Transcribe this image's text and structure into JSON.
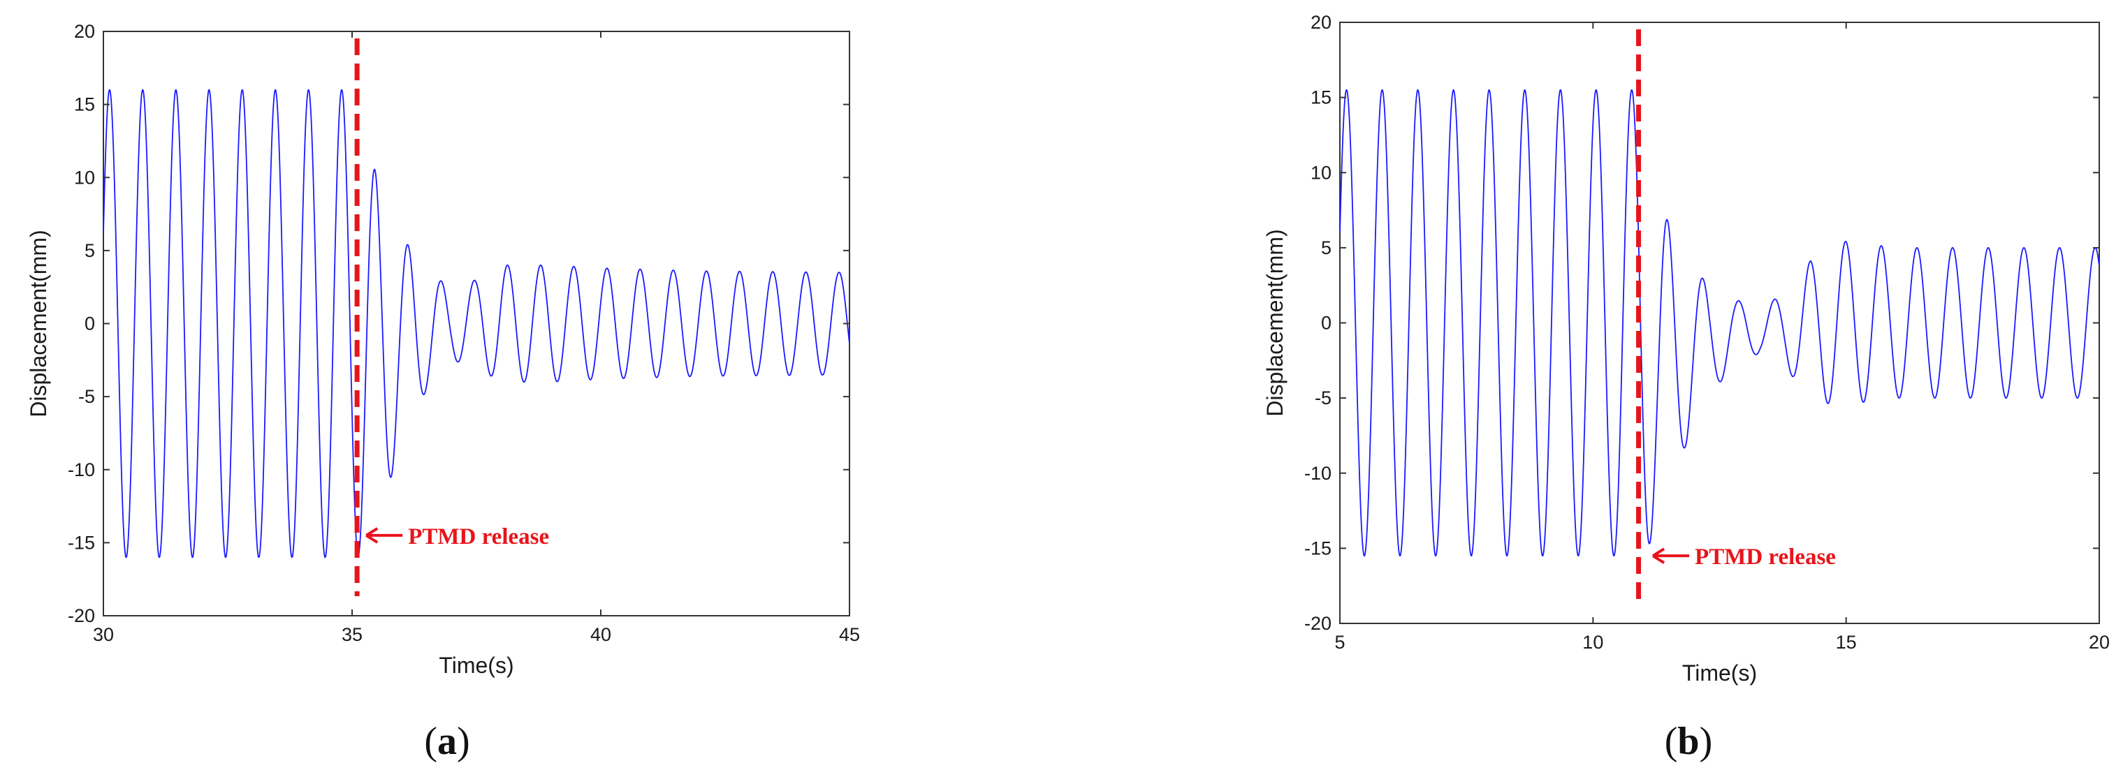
{
  "chart_data": [
    {
      "type": "line",
      "caption": "a",
      "xlabel": "Time(s)",
      "ylabel": "Displacement(mm)",
      "xlim": [
        30,
        45
      ],
      "ylim": [
        -20,
        20
      ],
      "xticks": [
        30,
        35,
        40,
        45
      ],
      "yticks": [
        -20,
        -15,
        -10,
        -5,
        0,
        5,
        10,
        15,
        20
      ],
      "grid": false,
      "line_color": "#1a1aff",
      "release_line": {
        "x": 35.1,
        "color": "#e8141b",
        "style": "dashed"
      },
      "annotation": {
        "text": "PTMD release",
        "x": 35.2,
        "y": -14.5
      },
      "series": [
        {
          "t_start": 30,
          "t_end": 45,
          "frequency_hz": 1.5,
          "envelope": [
            [
              30,
              16
            ],
            [
              35.1,
              16
            ],
            [
              35.5,
              12
            ],
            [
              36,
              7
            ],
            [
              36.5,
              4
            ],
            [
              37,
              2.5
            ],
            [
              37.5,
              3
            ],
            [
              38,
              4
            ],
            [
              39,
              4
            ],
            [
              40,
              3.8
            ],
            [
              42,
              3.6
            ],
            [
              45,
              3.5
            ]
          ],
          "offset": [
            [
              30,
              0
            ],
            [
              35.1,
              0
            ],
            [
              35.4,
              -2
            ],
            [
              36,
              -1
            ],
            [
              37,
              0
            ],
            [
              45,
              0
            ]
          ]
        }
      ]
    },
    {
      "type": "line",
      "caption": "b",
      "xlabel": "Time(s)",
      "ylabel": "Displacement(mm)",
      "xlim": [
        5,
        20
      ],
      "ylim": [
        -20,
        20
      ],
      "xticks": [
        5,
        10,
        15,
        20
      ],
      "yticks": [
        -20,
        -15,
        -10,
        -5,
        0,
        5,
        10,
        15,
        20
      ],
      "grid": false,
      "line_color": "#1a1aff",
      "release_line": {
        "x": 10.9,
        "color": "#e8141b",
        "style": "dashed"
      },
      "annotation": {
        "text": "PTMD release",
        "x": 11.1,
        "y": -15.5
      },
      "series": [
        {
          "t_start": 5,
          "t_end": 20,
          "frequency_hz": 1.42,
          "envelope": [
            [
              5,
              15.5
            ],
            [
              10.9,
              15.5
            ],
            [
              11.3,
              11
            ],
            [
              11.8,
              6.5
            ],
            [
              12.3,
              3.5
            ],
            [
              12.8,
              2.2
            ],
            [
              13.3,
              1.5
            ],
            [
              13.8,
              2.5
            ],
            [
              14.3,
              4.5
            ],
            [
              14.8,
              5.5
            ],
            [
              16,
              5
            ],
            [
              18,
              5
            ],
            [
              20,
              5
            ]
          ],
          "offset": [
            [
              5,
              0
            ],
            [
              10.9,
              0
            ],
            [
              11.3,
              -3
            ],
            [
              12,
              -1.5
            ],
            [
              13,
              -0.5
            ],
            [
              14,
              -0.5
            ],
            [
              15,
              0
            ],
            [
              20,
              0
            ]
          ]
        }
      ]
    }
  ]
}
